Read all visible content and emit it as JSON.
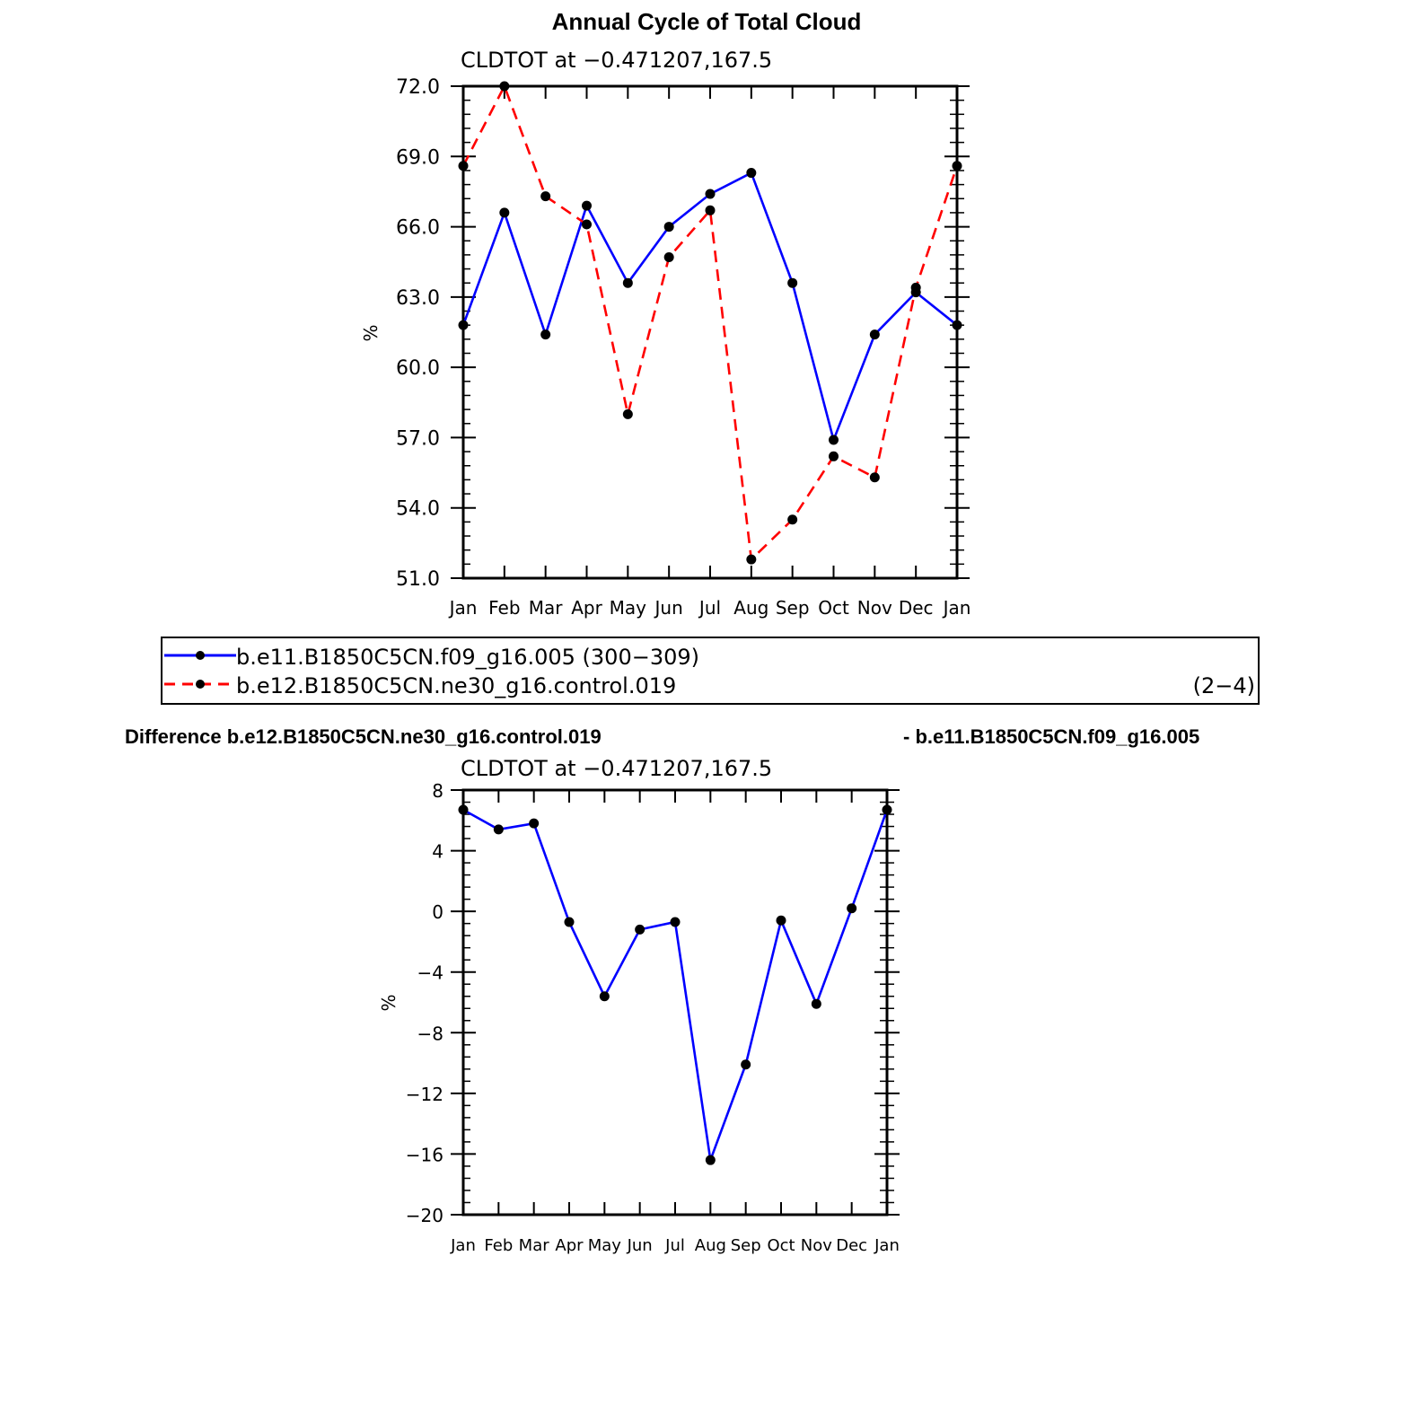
{
  "page": {
    "title": "Annual Cycle of Total Cloud",
    "diff_title_left": "Difference b.e12.B1850C5CN.ne30_g16.control.019",
    "diff_title_right": "- b.e11.B1850C5CN.f09_g16.005"
  },
  "legend": {
    "entry1": "b.e11.B1850C5CN.f09_g16.005 (300−309)",
    "entry2": "b.e12.B1850C5CN.ne30_g16.control.019",
    "entry2_suffix": "(2−4)",
    "color1": "#0000ff",
    "color2": "#ff0000"
  },
  "chart_data": [
    {
      "type": "line",
      "subtitle": "CLDTOT at −0.471207,167.5",
      "ylabel": "%",
      "categories": [
        "Jan",
        "Feb",
        "Mar",
        "Apr",
        "May",
        "Jun",
        "Jul",
        "Aug",
        "Sep",
        "Oct",
        "Nov",
        "Dec",
        "Jan"
      ],
      "ylim": [
        51,
        72
      ],
      "yticks": [
        "51.0",
        "54.0",
        "57.0",
        "60.0",
        "63.0",
        "66.0",
        "69.0",
        "72.0"
      ],
      "series": [
        {
          "name": "b.e11.B1850C5CN.f09_g16.005 (300−309)",
          "color": "#0000ff",
          "dash": "solid",
          "values": [
            61.8,
            66.6,
            61.4,
            66.9,
            63.6,
            66.0,
            67.4,
            68.3,
            63.6,
            56.9,
            61.4,
            63.2,
            61.8
          ]
        },
        {
          "name": "b.e12.B1850C5CN.ne30_g16.control.019",
          "color": "#ff0000",
          "dash": "dashed",
          "values": [
            68.6,
            72.0,
            67.3,
            66.1,
            58.0,
            64.7,
            66.7,
            51.8,
            53.5,
            56.2,
            55.3,
            63.4,
            68.6
          ]
        }
      ]
    },
    {
      "type": "line",
      "subtitle": "CLDTOT at −0.471207,167.5",
      "ylabel": "%",
      "categories": [
        "Jan",
        "Feb",
        "Mar",
        "Apr",
        "May",
        "Jun",
        "Jul",
        "Aug",
        "Sep",
        "Oct",
        "Nov",
        "Dec",
        "Jan"
      ],
      "ylim": [
        -20,
        8
      ],
      "yticks": [
        "−20",
        "−16",
        "−12",
        "−8",
        "−4",
        "0",
        "4",
        "8"
      ],
      "series": [
        {
          "color": "#0000ff",
          "dash": "solid",
          "values": [
            6.7,
            5.4,
            5.8,
            -0.7,
            -5.6,
            -1.2,
            -0.7,
            -16.4,
            -10.1,
            -0.6,
            -6.1,
            0.2,
            6.7
          ]
        }
      ]
    }
  ]
}
